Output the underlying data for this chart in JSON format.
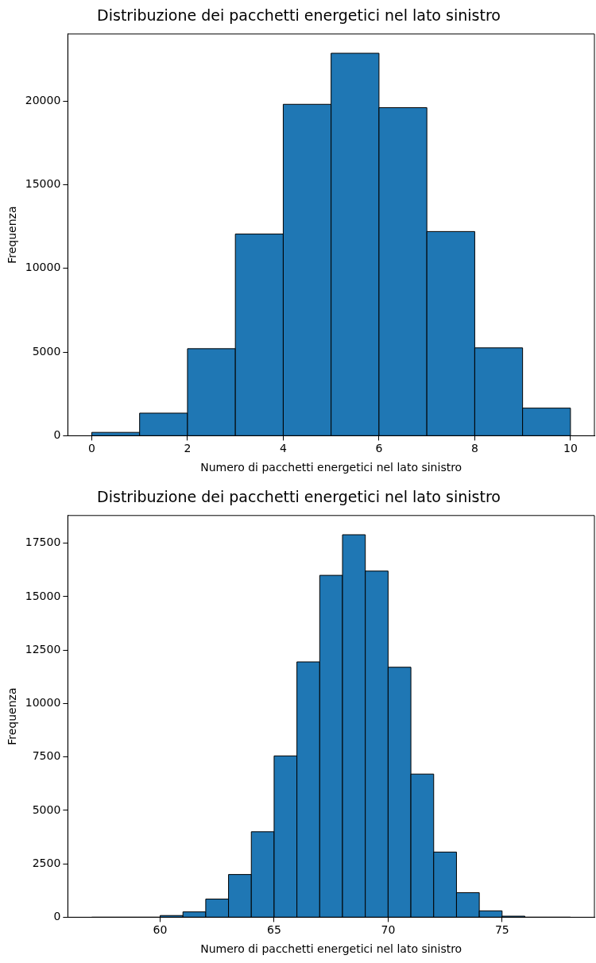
{
  "chart_data": [
    {
      "type": "histogram",
      "title": "Distribuzione dei pacchetti energetici nel lato sinistro",
      "xlabel": "Numero di pacchetti energetici nel lato sinistro",
      "ylabel": "Frequenza",
      "color": "#1f77b4",
      "bins": [
        0,
        1,
        2,
        3,
        4,
        5,
        6,
        7,
        8,
        9,
        10
      ],
      "values": [
        200,
        1350,
        5200,
        12050,
        19800,
        22850,
        19600,
        12200,
        5250,
        1650
      ],
      "xlim": [
        -0.5,
        10.5
      ],
      "ylim": [
        0,
        24000
      ],
      "xticks": [
        0,
        2,
        4,
        6,
        8,
        10
      ],
      "yticks": [
        0,
        5000,
        10000,
        15000,
        20000
      ]
    },
    {
      "type": "histogram",
      "title": "Distribuzione dei pacchetti energetici nel lato sinistro",
      "xlabel": "Numero di pacchetti energetici nel lato sinistro",
      "ylabel": "Frequenza",
      "color": "#1f77b4",
      "bins": [
        57,
        58,
        59,
        60,
        61,
        62,
        63,
        64,
        65,
        66,
        67,
        68,
        69,
        70,
        71,
        72,
        73,
        74,
        75,
        76,
        77,
        78
      ],
      "values": [
        0,
        0,
        0,
        80,
        250,
        850,
        2000,
        4000,
        7550,
        11950,
        16000,
        17900,
        16200,
        11700,
        6700,
        3050,
        1150,
        300,
        50,
        0,
        0
      ],
      "xlim": [
        55.95,
        79.05
      ],
      "ylim": [
        0,
        18800
      ],
      "xticks": [
        60,
        65,
        70,
        75
      ],
      "yticks": [
        0,
        2500,
        5000,
        7500,
        10000,
        12500,
        15000,
        17500
      ]
    }
  ]
}
